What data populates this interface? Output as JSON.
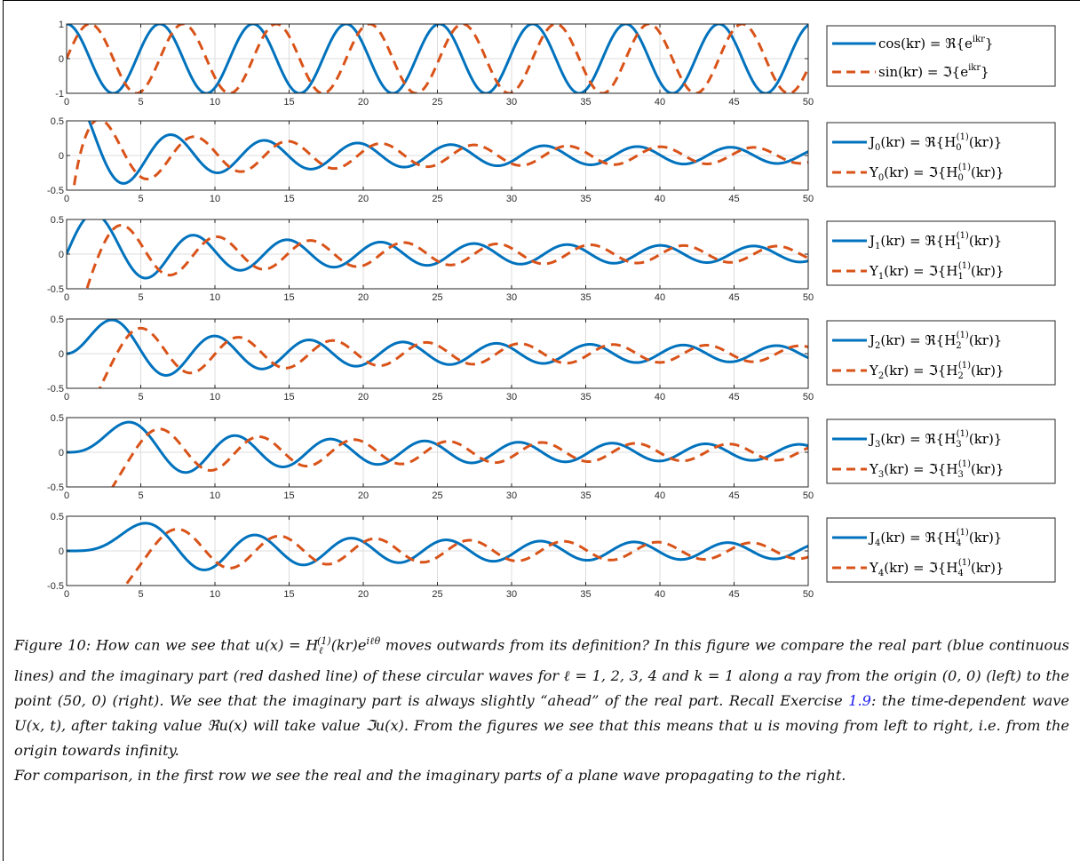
{
  "colors": {
    "real": "#0072BD",
    "imag": "#D95319",
    "grid": "#dcdcdc",
    "axis": "#262626"
  },
  "chart_data": [
    {
      "type": "line",
      "xlim": [
        0,
        50
      ],
      "ylim": [
        -1,
        1
      ],
      "xticks": [
        0,
        5,
        10,
        15,
        20,
        25,
        30,
        35,
        40,
        45,
        50
      ],
      "yticks": [
        -1,
        0,
        1
      ],
      "ytick_labels": [
        "-1",
        "0",
        "1"
      ],
      "grid": true,
      "legend_position": "right",
      "series": [
        {
          "name": "cos(kr) = ℜ{e^{ikr}}",
          "func": "cos",
          "order": 0,
          "style": "solid"
        },
        {
          "name": "sin(kr) = ℑ{e^{ikr}}",
          "func": "sin",
          "order": 0,
          "style": "dashed"
        }
      ]
    },
    {
      "type": "line",
      "xlim": [
        0,
        50
      ],
      "ylim": [
        -0.5,
        0.5
      ],
      "xticks": [
        0,
        5,
        10,
        15,
        20,
        25,
        30,
        35,
        40,
        45,
        50
      ],
      "yticks": [
        -0.5,
        0,
        0.5
      ],
      "ytick_labels": [
        "-0.5",
        "0",
        "0.5"
      ],
      "grid": true,
      "legend_position": "right",
      "series": [
        {
          "name": "J_0(kr) = ℜ{H_0^{(1)}(kr)}",
          "func": "besselj",
          "order": 0,
          "style": "solid"
        },
        {
          "name": "Y_0(kr) = ℑ{H_0^{(1)}(kr)}",
          "func": "bessely",
          "order": 0,
          "style": "dashed"
        }
      ]
    },
    {
      "type": "line",
      "xlim": [
        0,
        50
      ],
      "ylim": [
        -0.5,
        0.5
      ],
      "xticks": [
        0,
        5,
        10,
        15,
        20,
        25,
        30,
        35,
        40,
        45,
        50
      ],
      "yticks": [
        -0.5,
        0,
        0.5
      ],
      "ytick_labels": [
        "-0.5",
        "0",
        "0.5"
      ],
      "grid": true,
      "legend_position": "right",
      "series": [
        {
          "name": "J_1(kr) = ℜ{H_1^{(1)}(kr)}",
          "func": "besselj",
          "order": 1,
          "style": "solid"
        },
        {
          "name": "Y_1(kr) = ℑ{H_1^{(1)}(kr)}",
          "func": "bessely",
          "order": 1,
          "style": "dashed"
        }
      ]
    },
    {
      "type": "line",
      "xlim": [
        0,
        50
      ],
      "ylim": [
        -0.5,
        0.5
      ],
      "xticks": [
        0,
        5,
        10,
        15,
        20,
        25,
        30,
        35,
        40,
        45,
        50
      ],
      "yticks": [
        -0.5,
        0,
        0.5
      ],
      "ytick_labels": [
        "-0.5",
        "0",
        "0.5"
      ],
      "grid": true,
      "legend_position": "right",
      "series": [
        {
          "name": "J_2(kr) = ℜ{H_2^{(1)}(kr)}",
          "func": "besselj",
          "order": 2,
          "style": "solid"
        },
        {
          "name": "Y_2(kr) = ℑ{H_2^{(1)}(kr)}",
          "func": "bessely",
          "order": 2,
          "style": "dashed"
        }
      ]
    },
    {
      "type": "line",
      "xlim": [
        0,
        50
      ],
      "ylim": [
        -0.5,
        0.5
      ],
      "xticks": [
        0,
        5,
        10,
        15,
        20,
        25,
        30,
        35,
        40,
        45,
        50
      ],
      "yticks": [
        -0.5,
        0,
        0.5
      ],
      "ytick_labels": [
        "-0.5",
        "0",
        "0.5"
      ],
      "grid": true,
      "legend_position": "right",
      "series": [
        {
          "name": "J_3(kr) = ℜ{H_3^{(1)}(kr)}",
          "func": "besselj",
          "order": 3,
          "style": "solid"
        },
        {
          "name": "Y_3(kr) = ℑ{H_3^{(1)}(kr)}",
          "func": "bessely",
          "order": 3,
          "style": "dashed"
        }
      ]
    },
    {
      "type": "line",
      "xlim": [
        0,
        50
      ],
      "ylim": [
        -0.5,
        0.5
      ],
      "xticks": [
        0,
        5,
        10,
        15,
        20,
        25,
        30,
        35,
        40,
        45,
        50
      ],
      "yticks": [
        -0.5,
        0,
        0.5
      ],
      "ytick_labels": [
        "-0.5",
        "0",
        "0.5"
      ],
      "grid": true,
      "legend_position": "right",
      "series": [
        {
          "name": "J_4(kr) = ℜ{H_4^{(1)}(kr)}",
          "func": "besselj",
          "order": 4,
          "style": "solid"
        },
        {
          "name": "Y_4(kr) = ℑ{H_4^{(1)}(kr)}",
          "func": "bessely",
          "order": 4,
          "style": "dashed"
        }
      ]
    }
  ],
  "caption": {
    "label": "Figure 10:",
    "text_1": "How can we see that u(x) = H",
    "sub": "ℓ",
    "sup": "(1)",
    "text_2": "(kr)e",
    "exp": "iℓθ",
    "text_3": " moves outwards from its definition? In this figure we compare the real part (blue continuous lines) and the imaginary part (red dashed line) of these circular waves for ℓ = 1, 2, 3, 4 and k = 1 along a ray from the origin (0, 0) (left) to the point (50, 0) (right). We see that the imaginary part is always slightly “ahead” of the real part. Recall Exercise ",
    "ref": "1.9",
    "text_4": ": the time-dependent wave U(x, t), after taking value ℜu(x) will take value ℑu(x). From the figures we see that this means that u is moving from left to right, i.e. from the origin towards infinity.",
    "para_2": "For comparison, in the first row we see the real and the imaginary parts of a plane wave propagating to the right."
  }
}
